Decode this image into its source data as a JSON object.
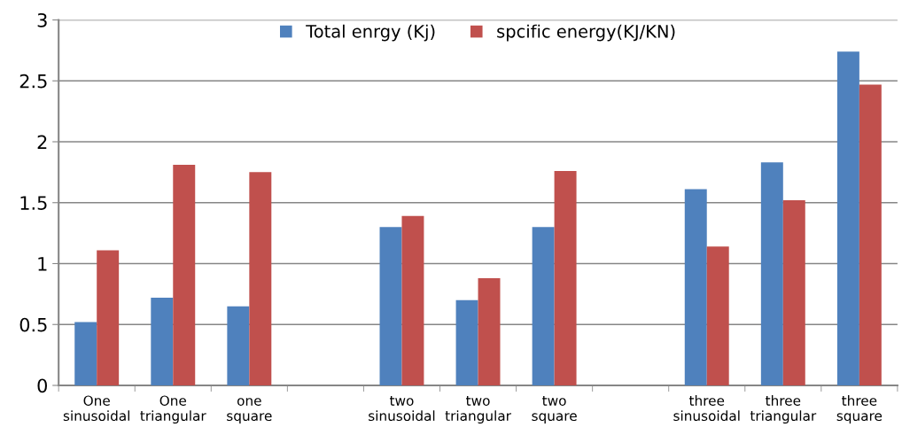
{
  "chart_data": {
    "type": "bar",
    "categories": [
      "One\nsinusoidal",
      "One\ntriangular",
      "one\nsquare",
      null,
      "two\nsinusoidal",
      "two\ntriangular",
      "two\nsquare",
      null,
      "three\nsinusoidal",
      "three\ntriangular",
      "three\nsquare"
    ],
    "series": [
      {
        "name": "Total enrgy (Kj)",
        "color": "#4f81bd",
        "values": [
          0.52,
          0.72,
          0.65,
          null,
          1.3,
          0.7,
          1.3,
          null,
          1.61,
          1.83,
          2.74
        ]
      },
      {
        "name": "spcific energy(KJ/KN)",
        "color": "#c0504d",
        "values": [
          1.11,
          1.81,
          1.75,
          null,
          1.39,
          0.88,
          1.76,
          null,
          1.14,
          1.52,
          2.47
        ]
      }
    ],
    "ylim": [
      0,
      3
    ],
    "yticks": [
      0,
      0.5,
      1,
      1.5,
      2,
      2.5,
      3
    ],
    "grid": "y",
    "legend": "top"
  }
}
